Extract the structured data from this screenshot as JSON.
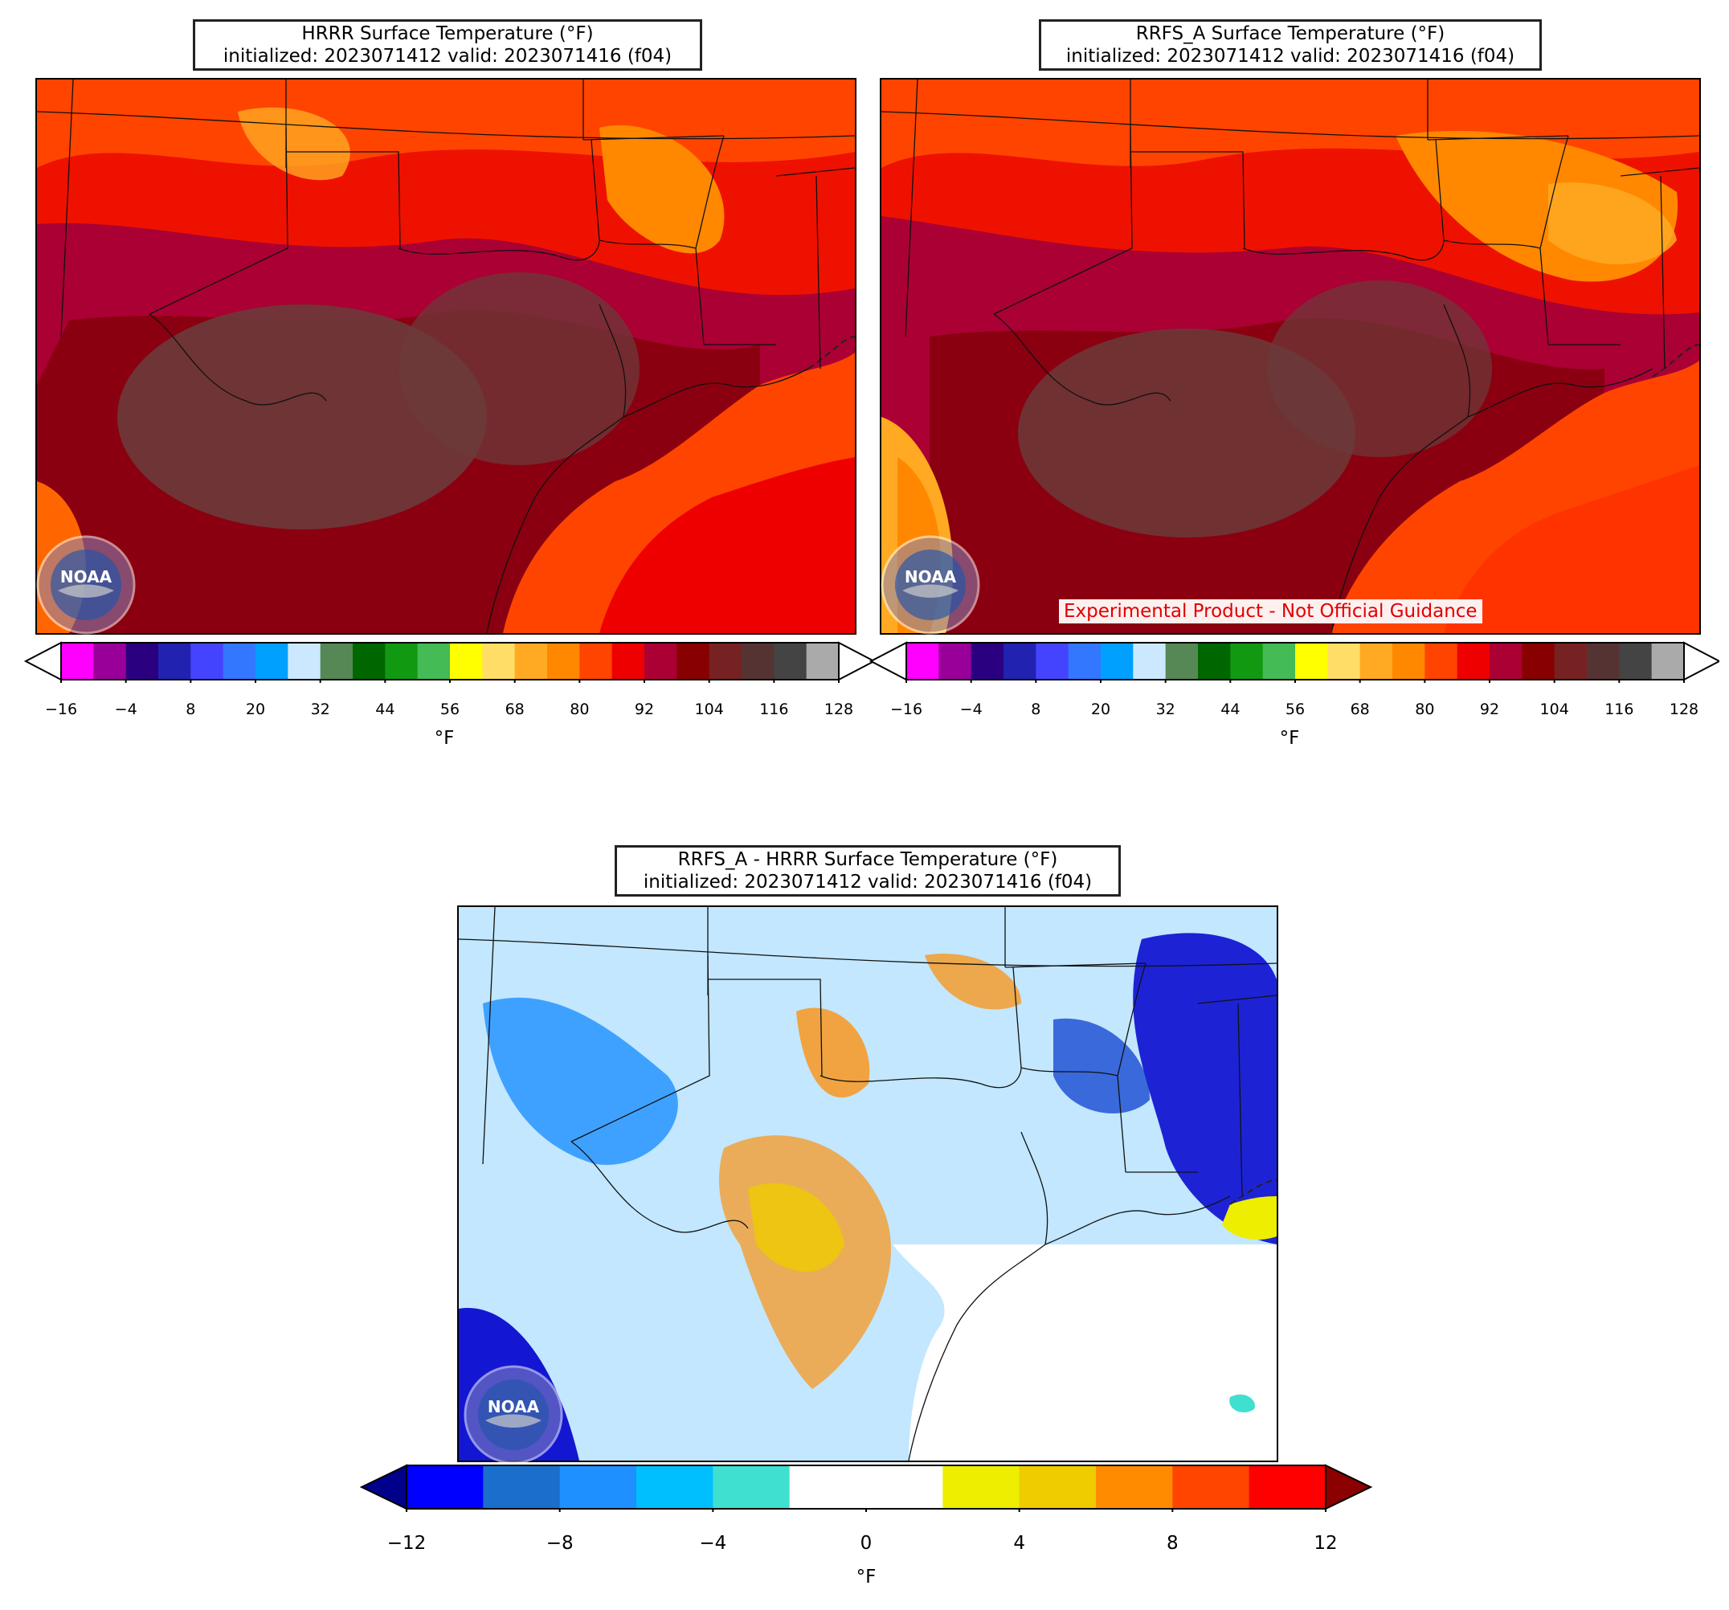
{
  "panels": {
    "hrrr": {
      "title_line1": "HRRR Surface Temperature (°F)",
      "title_line2": "initialized: 2023071412 valid: 2023071416 (f04)",
      "colorbar_unit": "°F"
    },
    "rrfs": {
      "title_line1": "RRFS_A Surface Temperature (°F)",
      "title_line2": "initialized: 2023071412 valid: 2023071416 (f04)",
      "colorbar_unit": "°F",
      "disclaimer": "Experimental Product - Not Official Guidance"
    },
    "diff": {
      "title_line1": "RRFS_A - HRRR Surface Temperature (°F)",
      "title_line2": "initialized: 2023071412 valid: 2023071416 (f04)",
      "colorbar_unit": "°F"
    }
  },
  "logo_text": "NOAA",
  "temp_colorbar": {
    "ticks": [
      "−16",
      "−4",
      "8",
      "20",
      "32",
      "44",
      "56",
      "68",
      "80",
      "92",
      "104",
      "116",
      "128"
    ],
    "colors": [
      "#ff00ff",
      "#990099",
      "#2b0080",
      "#2222b0",
      "#4444ff",
      "#3377ff",
      "#00a0ff",
      "#cce8ff",
      "#558855",
      "#006600",
      "#119911",
      "#44bb55",
      "#ffff00",
      "#ffdd66",
      "#ffaa22",
      "#ff8800",
      "#ff4400",
      "#ee0000",
      "#aa0033",
      "#880000",
      "#772222",
      "#553333",
      "#444444",
      "#aaaaaa"
    ],
    "extend_low_color": "#ffffff",
    "extend_high_color": "#ffffff"
  },
  "diff_colorbar": {
    "ticks": [
      "−12",
      "−8",
      "−4",
      "0",
      "4",
      "8",
      "12"
    ],
    "colors": [
      "#0000ff",
      "#1a6ecc",
      "#1e90ff",
      "#00bfff",
      "#40e0d0",
      "#ffffff",
      "#ffffff",
      "#eeee00",
      "#eecc00",
      "#ff8c00",
      "#ff4500",
      "#ff0000"
    ],
    "extend_low_color": "#00008b",
    "extend_high_color": "#8b0000"
  }
}
